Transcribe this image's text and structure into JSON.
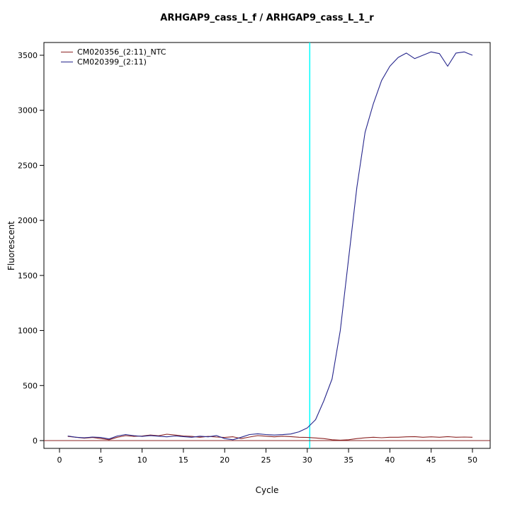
{
  "title": "ARHGAP9_cass_L_f / ARHGAP9_cass_L_1_r",
  "chart_data": {
    "type": "line",
    "title": "ARHGAP9_cass_L_f / ARHGAP9_cass_L_1_r",
    "xlabel": "Cycle",
    "ylabel": "Fluorescent",
    "xlim": [
      0,
      50
    ],
    "ylim": [
      0,
      3500
    ],
    "x_ticks": [
      0,
      5,
      10,
      15,
      20,
      25,
      30,
      35,
      40,
      45,
      50
    ],
    "y_ticks": [
      0,
      500,
      1000,
      1500,
      2000,
      2500,
      3000,
      3500
    ],
    "grid": false,
    "legend_position": "top-left",
    "threshold_line": {
      "x": 30.3,
      "color": "#00ffff"
    },
    "baseline": {
      "y": 0,
      "color": "#8b2323"
    },
    "x": [
      1,
      2,
      3,
      4,
      5,
      6,
      7,
      8,
      9,
      10,
      11,
      12,
      13,
      14,
      15,
      16,
      17,
      18,
      19,
      20,
      21,
      22,
      23,
      24,
      25,
      26,
      27,
      28,
      29,
      30,
      31,
      32,
      33,
      34,
      35,
      36,
      37,
      38,
      39,
      40,
      41,
      42,
      43,
      44,
      45,
      46,
      47,
      48,
      49,
      50
    ],
    "series": [
      {
        "name": "CM020356_(2:11)_NTC",
        "color": "#8b2323",
        "values": [
          38,
          30,
          22,
          28,
          18,
          8,
          30,
          45,
          38,
          42,
          50,
          44,
          58,
          50,
          42,
          38,
          30,
          38,
          32,
          28,
          35,
          18,
          32,
          45,
          40,
          34,
          40,
          36,
          30,
          28,
          24,
          18,
          8,
          4,
          8,
          18,
          25,
          30,
          26,
          30,
          30,
          34,
          36,
          30,
          34,
          30,
          36,
          30,
          32,
          30
        ]
      },
      {
        "name": "CM020399_(2:11)",
        "color": "#26268c",
        "values": [
          42,
          30,
          25,
          32,
          28,
          15,
          42,
          55,
          45,
          38,
          46,
          40,
          34,
          42,
          36,
          30,
          40,
          34,
          46,
          18,
          8,
          30,
          55,
          62,
          55,
          50,
          54,
          60,
          80,
          115,
          190,
          360,
          560,
          1000,
          1650,
          2300,
          2800,
          3060,
          3270,
          3400,
          3480,
          3520,
          3470,
          3500,
          3530,
          3515,
          3400,
          3520,
          3530,
          3500
        ]
      }
    ]
  }
}
